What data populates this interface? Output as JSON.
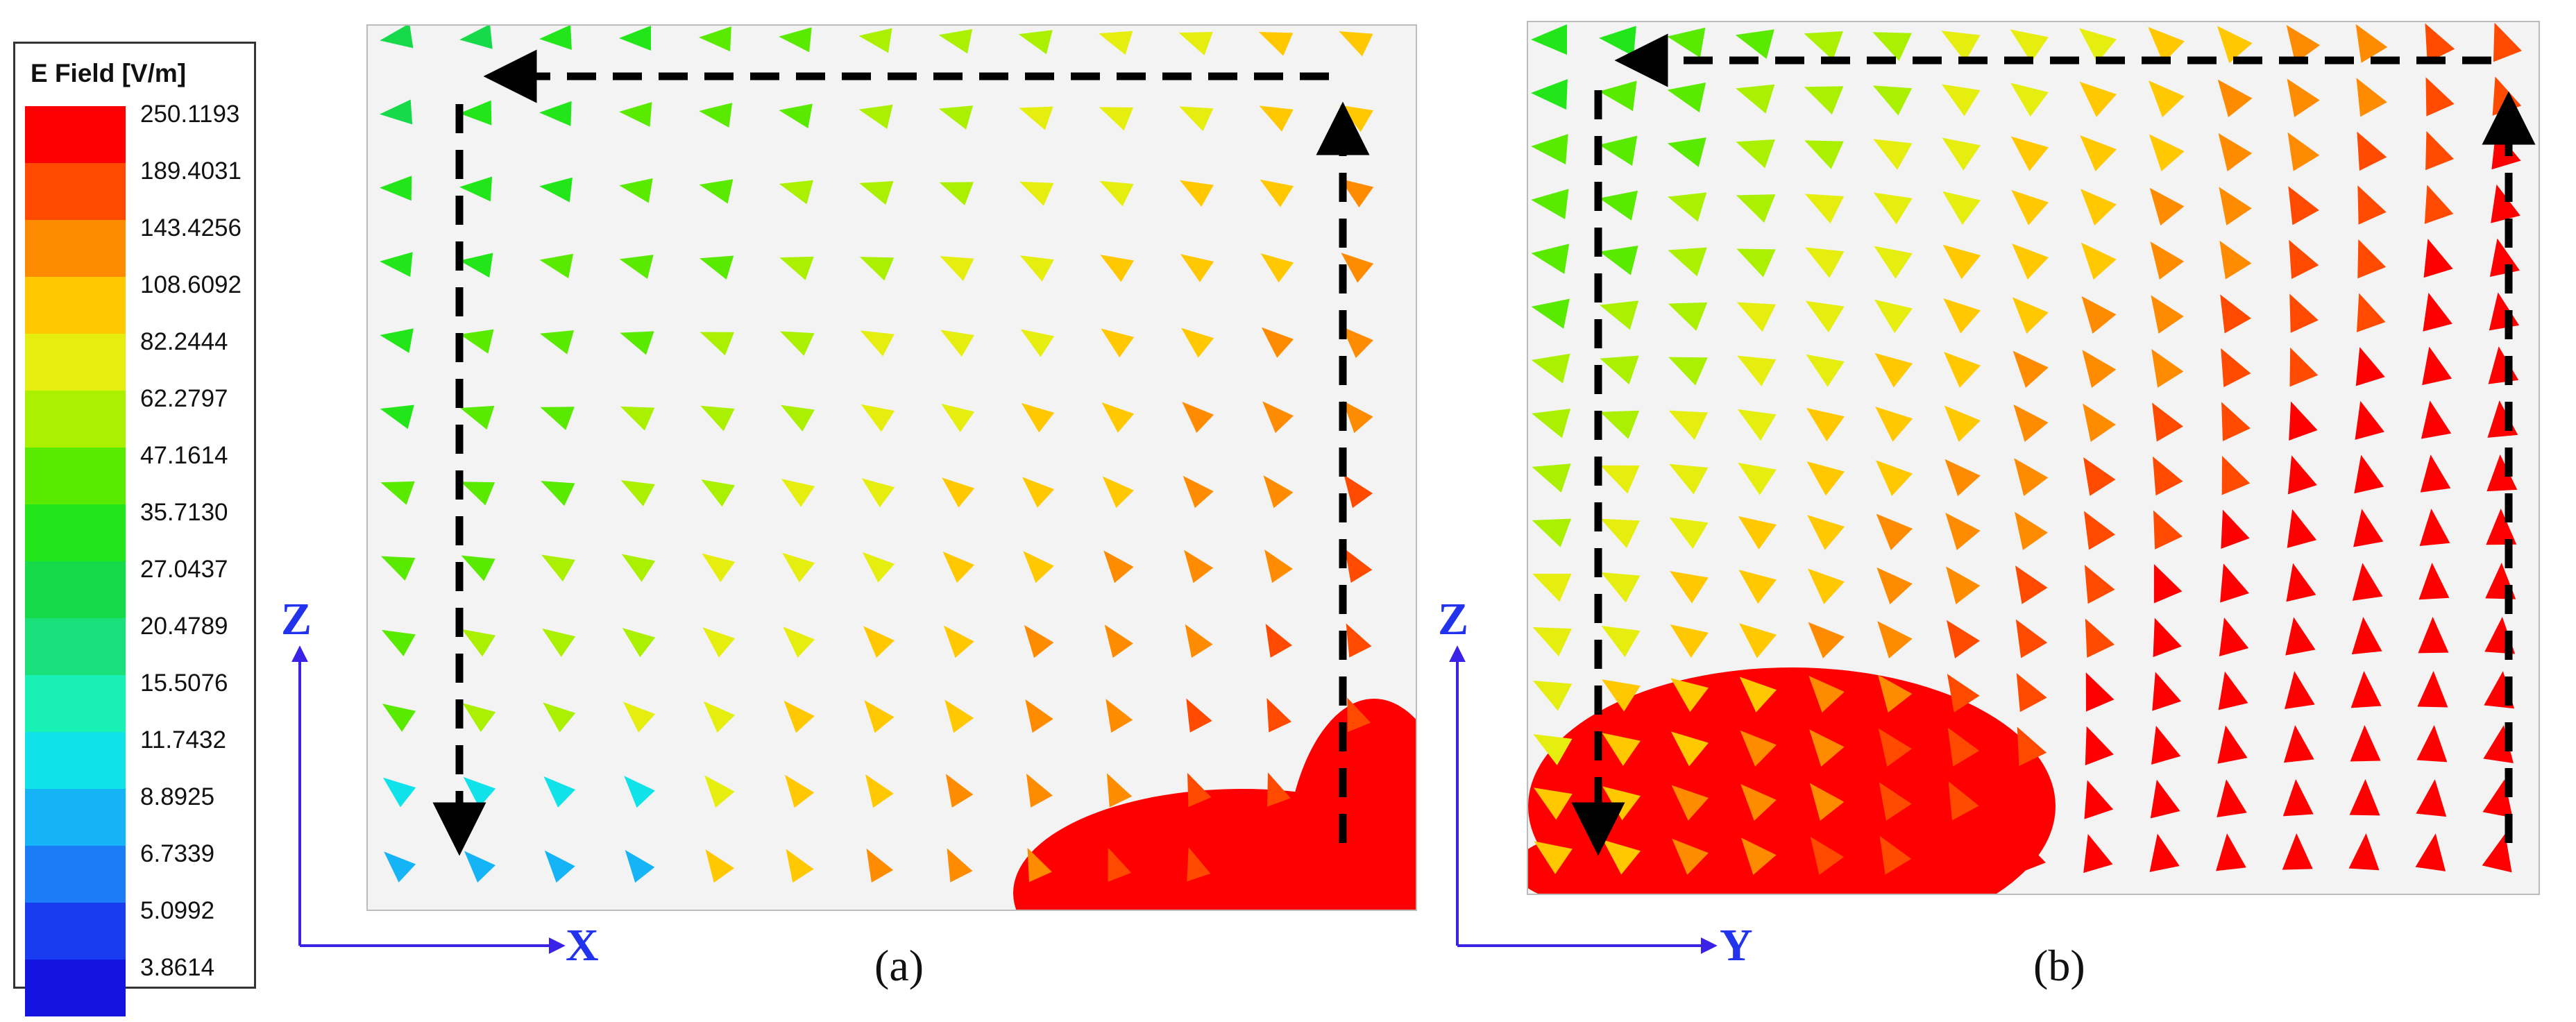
{
  "legend": {
    "title": "E Field [V/m]",
    "levels": [
      {
        "label": "250.1193",
        "color": "#ff0000"
      },
      {
        "label": "189.4031",
        "color": "#ff4a00"
      },
      {
        "label": "143.4256",
        "color": "#ff8c00"
      },
      {
        "label": "108.6092",
        "color": "#ffc800"
      },
      {
        "label": "82.2444",
        "color": "#e6ee10"
      },
      {
        "label": "62.2797",
        "color": "#aaf000"
      },
      {
        "label": "47.1614",
        "color": "#5aea00"
      },
      {
        "label": "35.7130",
        "color": "#22e61a"
      },
      {
        "label": "27.0437",
        "color": "#16da4a"
      },
      {
        "label": "20.4789",
        "color": "#1ae07c"
      },
      {
        "label": "15.5076",
        "color": "#18f0b4"
      },
      {
        "label": "11.7432",
        "color": "#10e2ea"
      },
      {
        "label": "8.8925",
        "color": "#14b4f6"
      },
      {
        "label": "6.7339",
        "color": "#1a7cf6"
      },
      {
        "label": "5.0992",
        "color": "#1a3cf0"
      },
      {
        "label": "3.8614",
        "color": "#1414e0"
      }
    ]
  },
  "panels": [
    {
      "id": "a",
      "caption": "(a)",
      "horizontal_axis": "X",
      "vertical_axis": "Z"
    },
    {
      "id": "b",
      "caption": "(b)",
      "horizontal_axis": "Y",
      "vertical_axis": "Z"
    }
  ]
}
